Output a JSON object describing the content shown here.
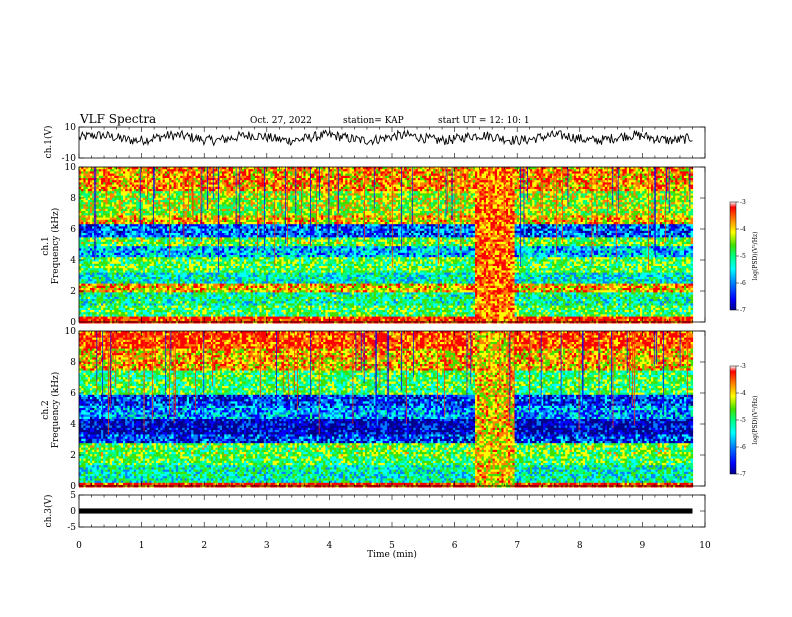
{
  "header": {
    "title": "VLF Spectra",
    "date": "Oct. 27, 2022",
    "station": "station= KAP",
    "start": "start  UT =   12: 10: 1"
  },
  "colors": {
    "spectrum": [
      "#00008b",
      "#0000ff",
      "#0080ff",
      "#00ffff",
      "#00ff80",
      "#40e000",
      "#ffff00",
      "#ff8000",
      "#ff0000",
      "#ffffff"
    ]
  },
  "chart_data": [
    {
      "type": "line",
      "name": "ch1-waveform",
      "ylabel": "ch.1(V)",
      "ylim": [
        -10,
        10
      ],
      "yticks": [
        "10",
        "-10"
      ],
      "x_range_min": [
        0,
        9.8
      ],
      "approx_level": 3,
      "approx_amplitude": 4
    },
    {
      "type": "heatmap",
      "name": "ch1-spectrogram",
      "ylabel": "ch.1\nFrequency (kHz)",
      "ylim": [
        0,
        10
      ],
      "yticks": [
        "0",
        "2",
        "4",
        "6",
        "8",
        "10"
      ],
      "colorbar": {
        "label": "log(PSD)(V²/Hz)",
        "range": [
          -7,
          -3
        ],
        "ticks": [
          "-3",
          "-4",
          "-5",
          "-6",
          "-7"
        ]
      },
      "bands": [
        {
          "from": 0.0,
          "to": 0.4,
          "level": -3.2
        },
        {
          "from": 0.4,
          "to": 1.2,
          "level": -4.8
        },
        {
          "from": 1.2,
          "to": 2.0,
          "level": -5.1
        },
        {
          "from": 2.0,
          "to": 2.5,
          "level": -3.9
        },
        {
          "from": 2.5,
          "to": 3.3,
          "level": -5.3
        },
        {
          "from": 3.3,
          "to": 4.2,
          "level": -4.7
        },
        {
          "from": 4.2,
          "to": 5.0,
          "level": -5.6
        },
        {
          "from": 5.0,
          "to": 5.6,
          "level": -4.6
        },
        {
          "from": 5.6,
          "to": 6.4,
          "level": -6.0
        },
        {
          "from": 6.4,
          "to": 7.0,
          "level": -4.0
        },
        {
          "from": 7.0,
          "to": 8.5,
          "level": -4.4
        },
        {
          "from": 8.5,
          "to": 10.0,
          "level": -3.8
        }
      ],
      "event": {
        "t_from": 6.3,
        "t_to": 6.95,
        "level": -3.6
      }
    },
    {
      "type": "heatmap",
      "name": "ch2-spectrogram",
      "ylabel": "ch.2\nFrequency (kHz)",
      "ylim": [
        0,
        10
      ],
      "yticks": [
        "0",
        "2",
        "4",
        "6",
        "8",
        "10"
      ],
      "colorbar": {
        "label": "log(PSD)(V²/Hz)",
        "range": [
          -7,
          -3
        ],
        "ticks": [
          "-3",
          "-4",
          "-5",
          "-6",
          "-7"
        ]
      },
      "bands": [
        {
          "from": 0.0,
          "to": 0.3,
          "level": -3.2
        },
        {
          "from": 0.3,
          "to": 1.4,
          "level": -5.2
        },
        {
          "from": 1.4,
          "to": 2.0,
          "level": -4.8
        },
        {
          "from": 2.0,
          "to": 2.8,
          "level": -4.6
        },
        {
          "from": 2.8,
          "to": 3.4,
          "level": -6.2
        },
        {
          "from": 3.4,
          "to": 4.4,
          "level": -6.6
        },
        {
          "from": 4.4,
          "to": 5.2,
          "level": -5.8
        },
        {
          "from": 5.2,
          "to": 6.0,
          "level": -6.2
        },
        {
          "from": 6.0,
          "to": 7.5,
          "level": -4.8
        },
        {
          "from": 7.5,
          "to": 9.0,
          "level": -3.9
        },
        {
          "from": 9.0,
          "to": 10.0,
          "level": -3.4
        }
      ],
      "event": {
        "t_from": 6.3,
        "t_to": 6.95,
        "level": -4.0
      }
    },
    {
      "type": "line",
      "name": "ch3-waveform",
      "ylabel": "ch.3(V)",
      "ylim": [
        -5,
        5
      ],
      "yticks": [
        "5",
        "0",
        "-5"
      ],
      "x_range_min": [
        0,
        9.8
      ],
      "approx_level": 0,
      "approx_amplitude": 0.8
    }
  ],
  "xaxis": {
    "label": "Time  (min)",
    "range": [
      0,
      10
    ],
    "ticks": [
      "0",
      "1",
      "2",
      "3",
      "4",
      "5",
      "6",
      "7",
      "8",
      "9",
      "10"
    ]
  }
}
